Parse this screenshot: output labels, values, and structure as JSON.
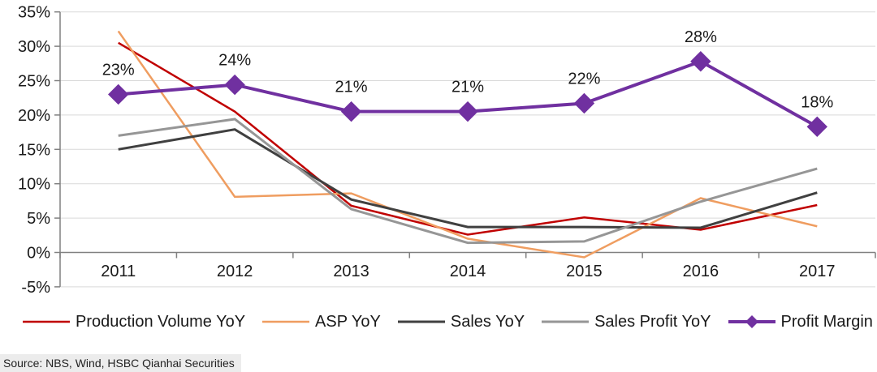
{
  "chart_data": {
    "type": "line",
    "title": "",
    "categories": [
      "2011",
      "2012",
      "2013",
      "2014",
      "2015",
      "2016",
      "2017"
    ],
    "ylim": [
      -5,
      35
    ],
    "y_unit": "%",
    "y_tick_values": [
      35,
      30,
      25,
      20,
      15,
      10,
      5,
      0,
      -5
    ],
    "y_tick_labels": [
      "35%",
      "30%",
      "25%",
      "20%",
      "15%",
      "10%",
      "5%",
      "0%",
      "-5%"
    ],
    "grid": "horizontal",
    "legend_position": "bottom",
    "series": [
      {
        "name": "Production Volume YoY",
        "color": "#C00000",
        "marker": "none",
        "values": [
          30.5,
          20.5,
          6.8,
          2.6,
          5.1,
          3.3,
          6.9
        ]
      },
      {
        "name": "ASP YoY",
        "color": "#EF9D60",
        "marker": "none",
        "values": [
          32.2,
          8.1,
          8.6,
          2.0,
          -0.7,
          7.9,
          3.8
        ]
      },
      {
        "name": "Sales YoY",
        "color": "#404040",
        "marker": "none",
        "values": [
          15.0,
          17.9,
          7.7,
          3.7,
          3.7,
          3.6,
          8.7
        ]
      },
      {
        "name": "Sales Profit YoY",
        "color": "#969696",
        "marker": "none",
        "values": [
          17.0,
          19.4,
          6.3,
          1.4,
          1.6,
          7.4,
          12.2
        ]
      },
      {
        "name": "Profit Margin",
        "color": "#7030A0",
        "marker": "diamond",
        "values": [
          23.0,
          24.4,
          20.5,
          20.5,
          21.7,
          27.8,
          18.3
        ],
        "data_labels": [
          "23%",
          "24%",
          "21%",
          "21%",
          "22%",
          "28%",
          "18%"
        ]
      }
    ],
    "colors": {
      "gridline": "#D9D9D9",
      "axis": "#808080",
      "text": "#1a1a1a"
    }
  },
  "source": {
    "text": "Source: NBS, Wind, HSBC Qianhai Securities"
  }
}
